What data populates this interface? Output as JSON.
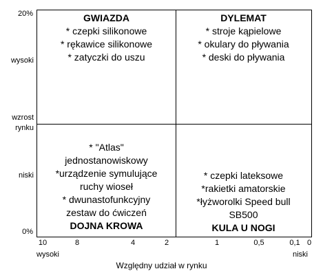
{
  "y_axis": {
    "top_value": "20%",
    "high_label": "wysoki",
    "title_line1": "wzrost",
    "title_line2": "rynku",
    "low_label": "niski",
    "bottom_value": "0%"
  },
  "x_axis": {
    "ticks": [
      "10",
      "8",
      "4",
      "2",
      "1",
      "0,5",
      "0,1",
      "0"
    ],
    "high_label": "wysoki",
    "low_label": "niski",
    "title": "Względny udział w rynku"
  },
  "quadrants": {
    "stars": {
      "title": "GWIAZDA",
      "items": [
        "* czepki silikonowe",
        "* rękawice silikonowe",
        "* zatyczki do uszu"
      ]
    },
    "question_marks": {
      "title": "DYLEMAT",
      "items": [
        "* stroje kąpielowe",
        "* okulary do pływania",
        "* deski do pływania"
      ]
    },
    "cash_cows": {
      "title": "DOJNA KROWA",
      "items": [
        "* \"Atlas\"",
        "jednostanowiskowy",
        "*urządzenie symulujące",
        "ruchy wioseł",
        "* dwunastofunkcyjny",
        "zestaw do ćwiczeń"
      ]
    },
    "dogs": {
      "title": "KULA U NOGI",
      "items": [
        "* czepki lateksowe",
        "*rakietki amatorskie",
        "*łyżworolki Speed bull",
        "SB500"
      ]
    }
  }
}
